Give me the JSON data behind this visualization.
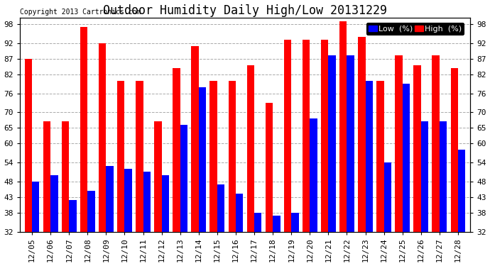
{
  "title": "Outdoor Humidity Daily High/Low 20131229",
  "copyright": "Copyright 2013 Cartronics.com",
  "legend_low": "Low  (%)",
  "legend_high": "High  (%)",
  "categories": [
    "12/05",
    "12/06",
    "12/07",
    "12/08",
    "12/09",
    "12/10",
    "12/11",
    "12/12",
    "12/13",
    "12/14",
    "12/15",
    "12/16",
    "12/17",
    "12/18",
    "12/19",
    "12/20",
    "12/21",
    "12/22",
    "12/23",
    "12/24",
    "12/25",
    "12/26",
    "12/27",
    "12/28"
  ],
  "high_values": [
    87,
    67,
    67,
    97,
    92,
    80,
    80,
    67,
    84,
    91,
    80,
    80,
    85,
    73,
    93,
    93,
    93,
    99,
    94,
    80,
    88,
    85,
    88,
    84
  ],
  "low_values": [
    48,
    50,
    42,
    45,
    53,
    52,
    51,
    50,
    66,
    78,
    47,
    44,
    38,
    37,
    38,
    68,
    88,
    88,
    80,
    54,
    79,
    67,
    67,
    58
  ],
  "high_color": "#FF0000",
  "low_color": "#0000FF",
  "background_color": "#FFFFFF",
  "plot_bg_color": "#FFFFFF",
  "grid_color": "#AAAAAA",
  "ymin": 32,
  "ymax": 100,
  "yticks": [
    32,
    38,
    43,
    48,
    54,
    60,
    65,
    70,
    76,
    82,
    87,
    92,
    98
  ],
  "bar_width": 0.4,
  "title_fontsize": 12,
  "tick_fontsize": 8,
  "legend_fontsize": 8
}
